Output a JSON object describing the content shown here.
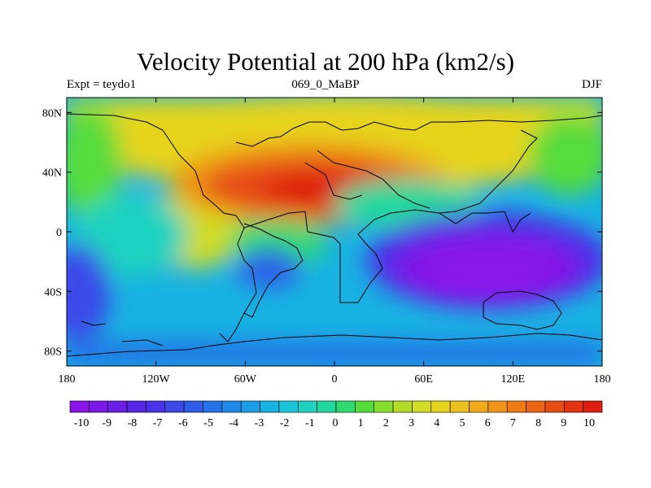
{
  "title": "Velocity Potential at 200 hPa (km2/s)",
  "left_label": "Expt = teydo1",
  "center_label": "069_0_MaBP",
  "right_label": "DJF",
  "x_ticks": [
    "180",
    "120W",
    "60W",
    "0",
    "60E",
    "120E",
    "180"
  ],
  "y_ticks": [
    "80N",
    "40N",
    "0",
    "40S",
    "80S"
  ],
  "colorbar": {
    "labels": [
      "-10",
      "-9",
      "-8",
      "-7",
      "-6",
      "-5",
      "-4",
      "-3",
      "-2",
      "-1",
      "0",
      "1",
      "2",
      "3",
      "4",
      "5",
      "6",
      "7",
      "8",
      "9",
      "10"
    ],
    "colors": [
      "#8a14e8",
      "#7a18e6",
      "#6a1ee6",
      "#5a26e6",
      "#4a32e6",
      "#3a48e8",
      "#2e5ee8",
      "#2472e8",
      "#1e88e8",
      "#1a9ee6",
      "#18b2e2",
      "#1ac4d8",
      "#1ed2c0",
      "#22d89c",
      "#30da70",
      "#56dc3a",
      "#86dc2c",
      "#b2dc26",
      "#d2dc22",
      "#e6d41e",
      "#ecc01e",
      "#eeaa1a",
      "#ee9418",
      "#ee7c16",
      "#ea6414",
      "#e64c12",
      "#e23410",
      "#de1e0e"
    ]
  }
}
